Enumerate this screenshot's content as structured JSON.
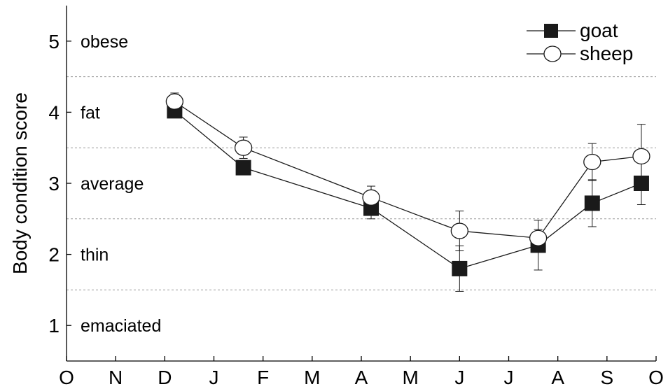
{
  "chart_data": {
    "type": "line",
    "ylabel": "Body condition score",
    "xlabel": "",
    "ylim": [
      0.5,
      5.5
    ],
    "yticks": [
      1,
      2,
      3,
      4,
      5
    ],
    "ytick_labels": [
      "1",
      "2",
      "3",
      "4",
      "5"
    ],
    "xlim": [
      0,
      12
    ],
    "x_month_labels": [
      "O",
      "N",
      "D",
      "J",
      "F",
      "M",
      "A",
      "M",
      "J",
      "J",
      "A",
      "S",
      "O"
    ],
    "grid": "dashed horizontal category boundaries at 1.5, 2.5, 3.5, 4.5",
    "category_boundaries": [
      1.5,
      2.5,
      3.5,
      4.5
    ],
    "categories": [
      {
        "label": "obese",
        "score": 5
      },
      {
        "label": "fat",
        "score": 4
      },
      {
        "label": "average",
        "score": 3
      },
      {
        "label": "thin",
        "score": 2
      },
      {
        "label": "emaciated",
        "score": 1
      }
    ],
    "legend_position": "top-right",
    "series": [
      {
        "name": "goat",
        "marker": "filled-square",
        "color": "#1a1a1a",
        "points": [
          {
            "x": 2.2,
            "y": 4.02,
            "err_up": 0.05,
            "err_down": 0.05
          },
          {
            "x": 3.6,
            "y": 3.22,
            "err_up": 0.08,
            "err_down": 0.08
          },
          {
            "x": 6.2,
            "y": 2.65,
            "err_up": 0.1,
            "err_down": 0.15
          },
          {
            "x": 8.0,
            "y": 1.8,
            "err_up": 0.32,
            "err_down": 0.32
          },
          {
            "x": 9.6,
            "y": 2.13,
            "err_up": 0.35,
            "err_down": 0.35
          },
          {
            "x": 10.7,
            "y": 2.72,
            "err_up": 0.33,
            "err_down": 0.33
          },
          {
            "x": 11.7,
            "y": 3.0,
            "err_up": 0.3,
            "err_down": 0.3
          }
        ]
      },
      {
        "name": "sheep",
        "marker": "open-circle",
        "color": "#1a1a1a",
        "points": [
          {
            "x": 2.2,
            "y": 4.15,
            "err_up": 0.12,
            "err_down": 0.12
          },
          {
            "x": 3.6,
            "y": 3.5,
            "err_up": 0.15,
            "err_down": 0.15
          },
          {
            "x": 6.2,
            "y": 2.8,
            "err_up": 0.16,
            "err_down": 0.16
          },
          {
            "x": 8.0,
            "y": 2.33,
            "err_up": 0.28,
            "err_down": 0.28
          },
          {
            "x": 9.6,
            "y": 2.23,
            "err_up": 0.12,
            "err_down": 0.12
          },
          {
            "x": 10.7,
            "y": 3.3,
            "err_up": 0.26,
            "err_down": 0.26
          },
          {
            "x": 11.7,
            "y": 3.38,
            "err_up": 0.45,
            "err_down": 0.45
          }
        ]
      }
    ]
  }
}
